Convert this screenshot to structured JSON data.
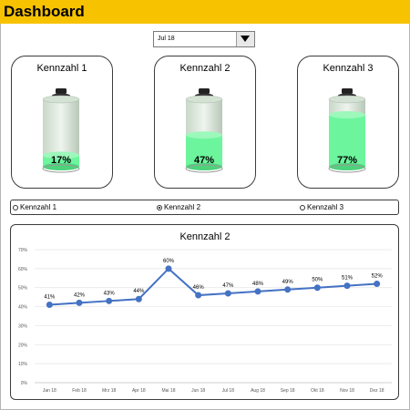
{
  "header": {
    "title": "Dashboard"
  },
  "month_select": {
    "value": "Jul 18"
  },
  "gauges": [
    {
      "title": "Kennzahl  1",
      "value": 0.17,
      "label": "17%"
    },
    {
      "title": "Kennzahl  2",
      "value": 0.47,
      "label": "47%"
    },
    {
      "title": "Kennzahl  3",
      "value": 0.77,
      "label": "77%"
    }
  ],
  "colors": {
    "header": "#f7c200",
    "battery_fill": "#6cf59d",
    "line": "#4472c4"
  },
  "radio": {
    "selected": 1,
    "options": [
      "Kennzahl 1",
      "Kennzahl 2",
      "Kennzahl 3"
    ]
  },
  "chart_data": {
    "type": "line",
    "title": "Kennzahl  2",
    "categories": [
      "Jan 18",
      "Feb 18",
      "Mrz 18",
      "Apr 18",
      "Mai 18",
      "Jun 18",
      "Jul 18",
      "Aug 18",
      "Sep 18",
      "Okt 18",
      "Nov 18",
      "Dez 18"
    ],
    "values": [
      41,
      42,
      43,
      44,
      60,
      46,
      47,
      48,
      49,
      50,
      51,
      52
    ],
    "data_labels": [
      "41%",
      "42%",
      "43%",
      "44%",
      "60%",
      "46%",
      "47%",
      "48%",
      "49%",
      "50%",
      "51%",
      "52%"
    ],
    "yticks": [
      "0%",
      "10%",
      "20%",
      "30%",
      "40%",
      "50%",
      "60%",
      "70%"
    ],
    "ylim": [
      0,
      70
    ],
    "grid": true
  }
}
